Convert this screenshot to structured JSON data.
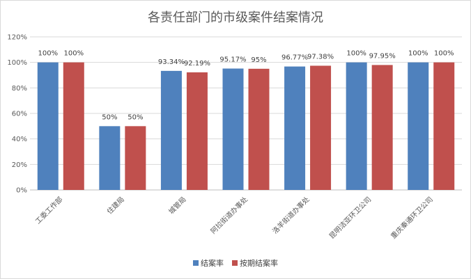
{
  "chart_data": {
    "type": "bar",
    "title": "各责任部门的市级案件结案情况",
    "categories": [
      "工委工作部",
      "住建局",
      "城管局",
      "阿拉街道办事处",
      "洛羊街道办事处",
      "昆明洁亚环卫公司",
      "重庆秦通环卫公司"
    ],
    "series": [
      {
        "name": "结案率",
        "color": "#4f81bd",
        "values": [
          100,
          50,
          93.34,
          95.17,
          96.77,
          100,
          100
        ],
        "labels": [
          "100%",
          "50%",
          "93.34%",
          "95.17%",
          "96.77%",
          "100%",
          "100%"
        ]
      },
      {
        "name": "按期结案率",
        "color": "#c0504d",
        "values": [
          100,
          50,
          92.19,
          95,
          97.38,
          97.95,
          100
        ],
        "labels": [
          "100%",
          "50%",
          "92.19%",
          "95%",
          "97.38%",
          "97.95%",
          "100%"
        ]
      }
    ],
    "yticks": [
      "0%",
      "20%",
      "40%",
      "60%",
      "80%",
      "100%",
      "120%"
    ],
    "ylim": [
      0,
      120
    ],
    "grid": true,
    "legend": "bottom"
  }
}
